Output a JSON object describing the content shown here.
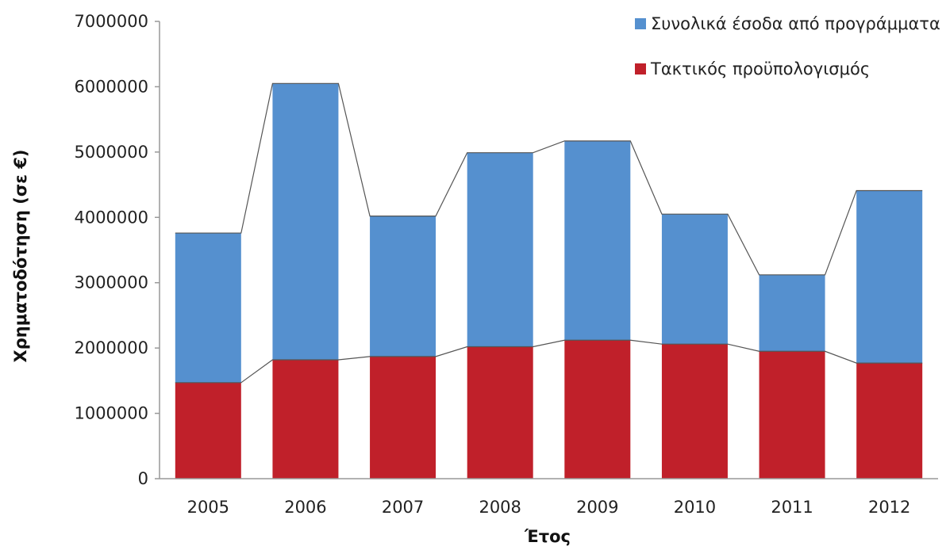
{
  "chart_data": {
    "type": "bar",
    "stacked": true,
    "categories": [
      "2005",
      "2006",
      "2007",
      "2008",
      "2009",
      "2010",
      "2011",
      "2012"
    ],
    "series": [
      {
        "name": "Τακτικός προϋπολογισμός",
        "color": "#c0202a",
        "values": [
          1470000,
          1820000,
          1870000,
          2020000,
          2120000,
          2060000,
          1950000,
          1770000
        ]
      },
      {
        "name": "Συνολικά έσοδα από προγράμματα",
        "color": "#5590cf",
        "values": [
          2290000,
          4230000,
          2150000,
          2970000,
          3050000,
          1990000,
          1170000,
          2640000
        ]
      }
    ],
    "totals": [
      3760000,
      6050000,
      4020000,
      4990000,
      5170000,
      4050000,
      3120000,
      4410000
    ],
    "connector_lines": true,
    "ylim": [
      0,
      7000000
    ],
    "yticks": [
      "0",
      "1000000",
      "2000000",
      "3000000",
      "4000000",
      "5000000",
      "6000000",
      "7000000"
    ],
    "xlabel": "Έτος",
    "ylabel": "Χρηματοδότηση (σε €)",
    "legend": {
      "position": "top-right",
      "items": [
        "Συνολικά έσοδα από προγράμματα",
        "Τακτικός προϋπολογισμός"
      ]
    },
    "grid": false
  }
}
